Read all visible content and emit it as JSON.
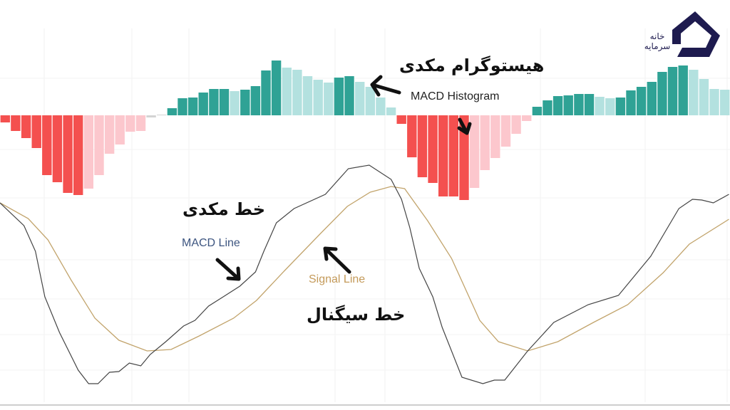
{
  "logo": {
    "text": "خانه سرمایه",
    "color": "#1e1b4f"
  },
  "annotations": {
    "histogram_fa": "هیستوگرام مکدی",
    "histogram_en": "MACD Histogram",
    "macd_fa": "خط مکدی",
    "macd_en": "MACD Line",
    "signal_en": "Signal Line",
    "signal_fa": "خط سیگنال"
  },
  "colors": {
    "hist_neg_strong": "#f4504f",
    "hist_neg_weak": "#fcc7cd",
    "hist_pos_strong": "#2fa295",
    "hist_pos_weak": "#b3e1df",
    "hist_flat": "#d3d3d3",
    "macd_line": "#444444",
    "signal_line": "#c2a46c",
    "macd_label": "#3d5580",
    "signal_label": "#c49a5a"
  },
  "chart_data": {
    "type": "bar+line",
    "title": "",
    "grid": true,
    "histogram": {
      "name": "MACD Histogram",
      "values": [
        -1.0,
        -2.2,
        -3.2,
        -4.6,
        -8.4,
        -9.4,
        -10.9,
        -11.2,
        -10.3,
        -8.4,
        -5.4,
        -4.1,
        -2.3,
        -2.2,
        -0.3,
        0.1,
        1.0,
        2.4,
        2.5,
        3.2,
        3.7,
        3.7,
        3.4,
        3.6,
        4.1,
        6.3,
        7.7,
        6.7,
        6.4,
        5.5,
        5.0,
        4.6,
        5.3,
        5.5,
        4.7,
        4.0,
        2.5,
        1.1,
        -1.2,
        -5.9,
        -8.7,
        -9.5,
        -11.4,
        -11.4,
        -11.9,
        -10.2,
        -7.7,
        -6.0,
        -4.4,
        -2.6,
        -0.8,
        1.2,
        2.1,
        2.7,
        2.8,
        3.0,
        3.0,
        2.6,
        2.4,
        2.5,
        3.5,
        4.0,
        4.7,
        6.1,
        6.8,
        7.0,
        6.4,
        5.1,
        3.7,
        3.6
      ],
      "shade": [
        "s",
        "s",
        "s",
        "s",
        "s",
        "s",
        "s",
        "s",
        "w",
        "w",
        "w",
        "w",
        "w",
        "w",
        "f",
        "f",
        "s",
        "s",
        "s",
        "s",
        "s",
        "s",
        "w",
        "s",
        "s",
        "s",
        "s",
        "w",
        "w",
        "w",
        "w",
        "w",
        "s",
        "s",
        "w",
        "w",
        "w",
        "w",
        "s",
        "s",
        "s",
        "s",
        "s",
        "s",
        "s",
        "w",
        "w",
        "w",
        "w",
        "w",
        "w",
        "s",
        "s",
        "s",
        "s",
        "s",
        "s",
        "w",
        "w",
        "s",
        "s",
        "s",
        "s",
        "s",
        "s",
        "s",
        "w",
        "w",
        "w",
        "w"
      ]
    },
    "macd_line": {
      "name": "MACD Line",
      "points": [
        [
          0,
          12.5
        ],
        [
          2.3,
          9.3
        ],
        [
          3.4,
          5.7
        ],
        [
          4.3,
          -0.7
        ],
        [
          5.7,
          -5.7
        ],
        [
          7.5,
          -11
        ],
        [
          8.5,
          -12.9
        ],
        [
          9.4,
          -12.9
        ],
        [
          10.5,
          -11.3
        ],
        [
          11.4,
          -11.2
        ],
        [
          12.4,
          -10
        ],
        [
          13.5,
          -10.4
        ],
        [
          14.4,
          -8.8
        ],
        [
          15.9,
          -7
        ],
        [
          17.6,
          -4.8
        ],
        [
          18.7,
          -4
        ],
        [
          20,
          -2
        ],
        [
          21.4,
          -0.7
        ],
        [
          23,
          0.8
        ],
        [
          24.5,
          2.8
        ],
        [
          25.3,
          5.7
        ],
        [
          26.5,
          9.7
        ],
        [
          28.2,
          11.7
        ],
        [
          31.2,
          13.7
        ],
        [
          33.4,
          17.3
        ],
        [
          35.4,
          17.8
        ],
        [
          37.5,
          15.8
        ],
        [
          38.5,
          13
        ],
        [
          39.3,
          9
        ],
        [
          40.2,
          3.3
        ],
        [
          41.5,
          -0.7
        ],
        [
          42.4,
          -5
        ],
        [
          44.3,
          -12
        ],
        [
          46.3,
          -12.9
        ],
        [
          47.4,
          -12.4
        ],
        [
          48.4,
          -12.4
        ],
        [
          50.6,
          -8.3
        ],
        [
          53.1,
          -4.3
        ],
        [
          56.4,
          -1.8
        ],
        [
          59.3,
          -0.5
        ],
        [
          62.4,
          5
        ],
        [
          65.1,
          11.7
        ],
        [
          66.4,
          13
        ],
        [
          67.3,
          12.9
        ],
        [
          68.4,
          12.5
        ],
        [
          69.9,
          13.7
        ]
      ]
    },
    "signal_line": {
      "name": "Signal Line",
      "points": [
        [
          0,
          12.5
        ],
        [
          2.7,
          10.3
        ],
        [
          4.6,
          7.3
        ],
        [
          6.8,
          1.7
        ],
        [
          9.1,
          -3.7
        ],
        [
          11.4,
          -6.8
        ],
        [
          14.1,
          -8.3
        ],
        [
          16.4,
          -8.1
        ],
        [
          19.1,
          -6.2
        ],
        [
          22.4,
          -3.7
        ],
        [
          24.6,
          -1.2
        ],
        [
          27.3,
          3
        ],
        [
          30.8,
          8.3
        ],
        [
          33.3,
          12
        ],
        [
          35.5,
          14
        ],
        [
          37.5,
          14.8
        ],
        [
          38.8,
          14.5
        ],
        [
          41,
          10
        ],
        [
          43.3,
          4.7
        ],
        [
          46,
          -4
        ],
        [
          47.8,
          -7
        ],
        [
          50.6,
          -8.3
        ],
        [
          53.5,
          -7
        ],
        [
          56.9,
          -4.3
        ],
        [
          60.2,
          -1.8
        ],
        [
          63.6,
          2.7
        ],
        [
          66.1,
          6.7
        ],
        [
          69.9,
          10.2
        ]
      ]
    }
  }
}
